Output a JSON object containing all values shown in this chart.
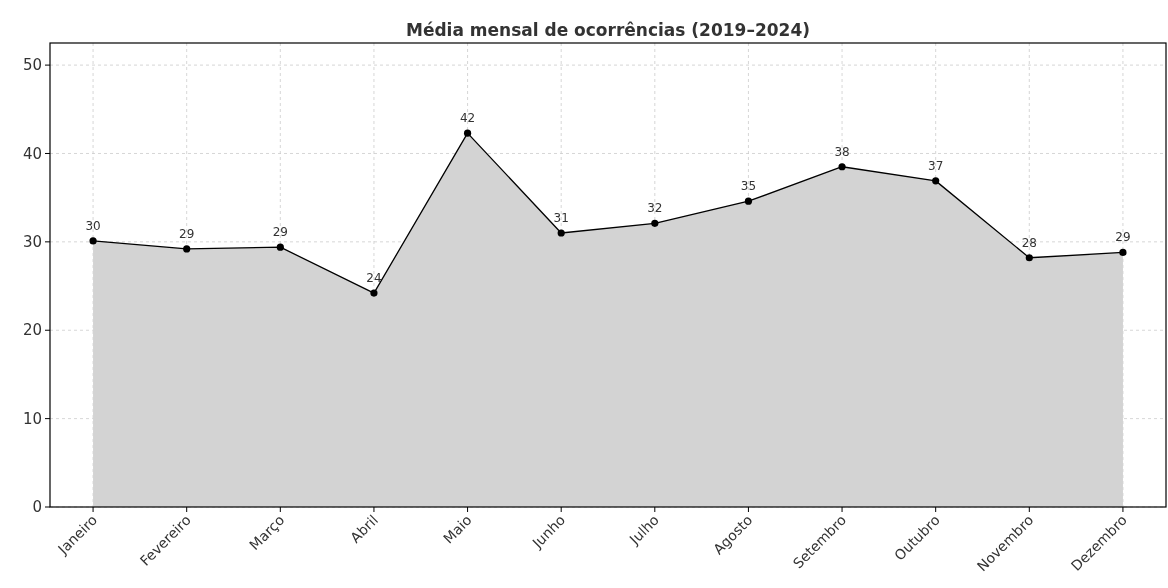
{
  "chart_data": {
    "type": "area",
    "title": "Média mensal de ocorrências (2019–2024)",
    "categories": [
      "Janeiro",
      "Fevereiro",
      "Março",
      "Abril",
      "Maio",
      "Junho",
      "Julho",
      "Agosto",
      "Setembro",
      "Outubro",
      "Novembro",
      "Dezembro"
    ],
    "series": [
      {
        "color": "#000000",
        "values": [
          30.1,
          29.2,
          29.4,
          24.2,
          42.3,
          31.0,
          32.1,
          34.6,
          38.5,
          36.9,
          28.2,
          28.8
        ],
        "value_labels": [
          "30",
          "29",
          "29",
          "24",
          "42",
          "31",
          "32",
          "35",
          "38",
          "37",
          "28",
          "29"
        ]
      }
    ],
    "ylim": [
      0,
      52.5
    ],
    "yticks": [
      0,
      10,
      20,
      30,
      40,
      50
    ],
    "grid": true,
    "marker": "circle",
    "line_style": "solid"
  }
}
